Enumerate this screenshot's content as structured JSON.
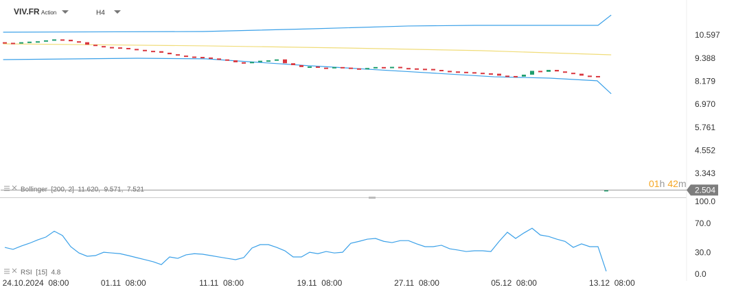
{
  "header": {
    "symbol": "VIV.FR",
    "kind": "Action",
    "timeframe": "H4",
    "countdown": [
      "01",
      "h",
      "42",
      "m"
    ]
  },
  "chart_data": [
    {
      "type": "candlestick",
      "legend": "Bollinger  [200, 2]  11.620,  9.571,  7.521",
      "up_color": "#1e9e6e",
      "down_color": "#d9363e",
      "open": [
        10.25,
        10.22,
        10.18,
        10.25,
        10.28,
        10.3,
        10.35,
        10.4,
        10.38,
        10.3,
        10.25,
        10.12,
        10.05,
        10.0,
        9.98,
        9.95,
        9.9,
        9.85,
        9.8,
        9.78,
        9.7,
        9.62,
        9.55,
        9.5,
        9.48,
        9.45,
        9.4,
        9.35,
        9.3,
        9.2,
        9.15,
        9.22,
        9.28,
        9.3,
        9.35,
        9.15,
        9.05,
        8.95,
        8.98,
        8.92,
        8.9,
        8.95,
        8.92,
        8.88,
        8.85,
        8.9,
        8.95,
        8.92,
        8.96,
        8.9,
        8.88,
        8.86,
        8.85,
        8.8,
        8.75,
        8.72,
        8.7,
        8.68,
        8.65,
        8.62,
        8.6,
        8.5,
        8.48,
        8.45,
        8.55,
        8.75,
        8.7,
        8.8,
        8.72,
        8.65,
        8.6,
        8.5,
        8.48,
        2.44
      ],
      "close": [
        10.22,
        10.18,
        10.25,
        10.28,
        10.3,
        10.35,
        10.4,
        10.38,
        10.3,
        10.25,
        10.12,
        10.05,
        10.0,
        9.98,
        9.95,
        9.9,
        9.85,
        9.8,
        9.78,
        9.7,
        9.62,
        9.55,
        9.5,
        9.48,
        9.45,
        9.4,
        9.35,
        9.3,
        9.2,
        9.15,
        9.22,
        9.28,
        9.3,
        9.35,
        9.15,
        9.05,
        8.95,
        8.98,
        8.92,
        8.9,
        8.95,
        8.92,
        8.88,
        8.85,
        8.9,
        8.95,
        8.92,
        8.96,
        8.9,
        8.88,
        8.86,
        8.85,
        8.8,
        8.75,
        8.72,
        8.7,
        8.68,
        8.65,
        8.62,
        8.6,
        8.5,
        8.48,
        8.45,
        8.55,
        8.75,
        8.7,
        8.8,
        8.72,
        8.65,
        8.6,
        8.5,
        8.48,
        8.45,
        2.504
      ],
      "bands": [
        {
          "color": "#3aa0e8",
          "x": [
            -0.2,
            24,
            37,
            49,
            57,
            72,
            73.6
          ],
          "values": [
            10.776,
            10.81,
            10.95,
            11.1,
            11.135,
            11.135,
            11.673
          ]
        },
        {
          "color": "#f0dc78",
          "x": [
            -0.2,
            24.4,
            41.1,
            57.75,
            73.6
          ],
          "values": [
            10.166,
            10.06,
            9.95,
            9.81,
            9.59
          ]
        },
        {
          "color": "#3aa0e8",
          "x": [
            -0.2,
            16.1,
            24.4,
            36.9,
            49.4,
            59.4,
            66.1,
            71.9,
            73.6
          ],
          "values": [
            9.34,
            9.41,
            9.38,
            9.02,
            8.7,
            8.44,
            8.37,
            8.23,
            7.55
          ]
        }
      ],
      "xlim": [
        -0.5,
        82.75
      ],
      "ylim": [
        2.123,
        12.283
      ],
      "yticks": [
        10.597,
        9.388,
        8.179,
        {
          "value": 6.97,
          "label": "6.970"
        },
        5.761,
        4.552,
        3.343
      ]
    },
    {
      "type": "line",
      "legend": "RSI  [15]  4.8",
      "color": "#3aa0e8",
      "values": [
        37.7,
        35,
        39.6,
        43.4,
        48,
        52,
        60,
        54,
        38.7,
        30,
        25.5,
        26.4,
        31,
        30,
        29,
        26.4,
        23.6,
        20.8,
        18,
        14,
        24.5,
        22.6,
        27.4,
        29,
        28.3,
        26.4,
        24.5,
        22.6,
        20.8,
        23.6,
        36.8,
        41.5,
        41.5,
        37.7,
        33,
        24.5,
        24.5,
        31,
        29,
        32,
        30,
        31,
        43.4,
        46,
        49,
        50,
        46,
        44.3,
        47,
        47,
        42.5,
        38.7,
        38.7,
        40.6,
        35.8,
        34,
        32,
        33,
        33,
        32,
        46,
        58.5,
        50,
        57.5,
        64,
        54.7,
        52.8,
        49,
        46,
        37.7,
        42.5,
        38.7,
        38.7,
        4.8
      ],
      "xlim": [
        -0.5,
        82.75
      ],
      "ylim": [
        0,
        100
      ],
      "yticks": [
        {
          "value": 100,
          "label": "100.0"
        },
        {
          "value": 70,
          "label": "70.0"
        },
        {
          "value": 30,
          "label": "30.0"
        },
        {
          "value": 0,
          "label": "0.0"
        }
      ],
      "xticks": [
        {
          "value": 3.75,
          "label": "24.10.2024  08:00"
        },
        {
          "value": 14.4,
          "label": "01.11  08:00"
        },
        {
          "value": 26.3,
          "label": "11.11  08:00"
        },
        {
          "value": 38.2,
          "label": "19.11  08:00"
        },
        {
          "value": 50,
          "label": "27.11  08:00"
        },
        {
          "value": 61.8,
          "label": "05.12  08:00"
        },
        {
          "value": 73.7,
          "label": "13.12  08:00"
        }
      ]
    }
  ]
}
